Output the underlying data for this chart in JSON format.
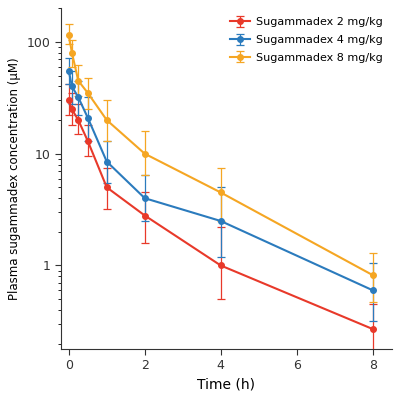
{
  "series": [
    {
      "label": "Sugammadex 2 mg/kg",
      "color": "#E8392A",
      "time": [
        0.0,
        0.083,
        0.25,
        0.5,
        1.0,
        2.0,
        4.0,
        8.0
      ],
      "y": [
        30.0,
        25.0,
        20.0,
        13.0,
        5.0,
        2.8,
        1.0,
        0.27
      ],
      "y_lo": [
        22.0,
        18.0,
        15.0,
        9.5,
        3.2,
        1.6,
        0.5,
        0.15
      ],
      "y_hi": [
        42.0,
        35.0,
        28.0,
        18.0,
        7.5,
        4.5,
        2.2,
        0.45
      ]
    },
    {
      "label": "Sugammadex 4 mg/kg",
      "color": "#2B7BBD",
      "time": [
        0.0,
        0.083,
        0.25,
        0.5,
        1.0,
        2.0,
        4.0,
        8.0
      ],
      "y": [
        55.0,
        40.0,
        32.0,
        21.0,
        8.5,
        4.0,
        2.5,
        0.6
      ],
      "y_lo": [
        42.0,
        28.0,
        22.0,
        13.0,
        5.5,
        2.5,
        1.2,
        0.32
      ],
      "y_hi": [
        72.0,
        55.0,
        45.0,
        32.0,
        13.0,
        6.5,
        5.0,
        1.05
      ]
    },
    {
      "label": "Sugammadex 8 mg/kg",
      "color": "#F5A623",
      "time": [
        0.0,
        0.083,
        0.25,
        0.5,
        1.0,
        2.0,
        4.0,
        8.0
      ],
      "y": [
        115.0,
        80.0,
        45.0,
        35.0,
        20.0,
        10.0,
        4.5,
        0.82
      ],
      "y_lo": [
        95.0,
        60.0,
        33.0,
        25.0,
        13.0,
        6.5,
        2.5,
        0.47
      ],
      "y_hi": [
        145.0,
        105.0,
        62.0,
        48.0,
        30.0,
        16.0,
        7.5,
        1.3
      ]
    }
  ],
  "xlabel": "Time (h)",
  "ylabel": "Plasma sugammadex concentration (μM)",
  "xlim": [
    -0.2,
    8.5
  ],
  "ylim_log": [
    0.18,
    200
  ],
  "xticks": [
    0,
    2,
    4,
    6,
    8
  ],
  "background_color": "#FFFFFF",
  "legend_loc": "upper right",
  "marker": "o",
  "markersize": 4,
  "linewidth": 1.5,
  "capsize": 3,
  "figsize": [
    4.0,
    4.0
  ],
  "dpi": 100
}
